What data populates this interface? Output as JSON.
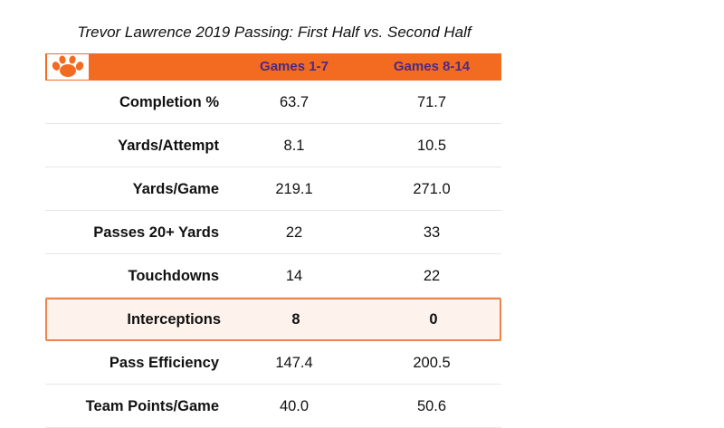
{
  "chart_data": {
    "type": "table",
    "title": "Trevor Lawrence 2019 Passing: First Half vs. Second Half",
    "columns": [
      "Games 1-7",
      "Games 8-14"
    ],
    "rows": [
      {
        "label": "Completion %",
        "values": [
          "63.7",
          "71.7"
        ]
      },
      {
        "label": "Yards/Attempt",
        "values": [
          "8.1",
          "10.5"
        ]
      },
      {
        "label": "Yards/Game",
        "values": [
          "219.1",
          "271.0"
        ]
      },
      {
        "label": "Passes 20+ Yards",
        "values": [
          "22",
          "33"
        ]
      },
      {
        "label": "Touchdowns",
        "values": [
          "14",
          "22"
        ]
      },
      {
        "label": "Interceptions",
        "values": [
          "8",
          "0"
        ],
        "highlighted": true
      },
      {
        "label": "Pass Efficiency",
        "values": [
          "147.4",
          "200.5"
        ]
      },
      {
        "label": "Team Points/Game",
        "values": [
          "40.0",
          "50.6"
        ]
      }
    ]
  },
  "logo": {
    "icon": "tiger-paw-icon",
    "color": "#f26b21"
  },
  "colors": {
    "header_bg": "#f26b21",
    "header_text": "#4d2a84",
    "highlight_border": "#e9864d"
  }
}
